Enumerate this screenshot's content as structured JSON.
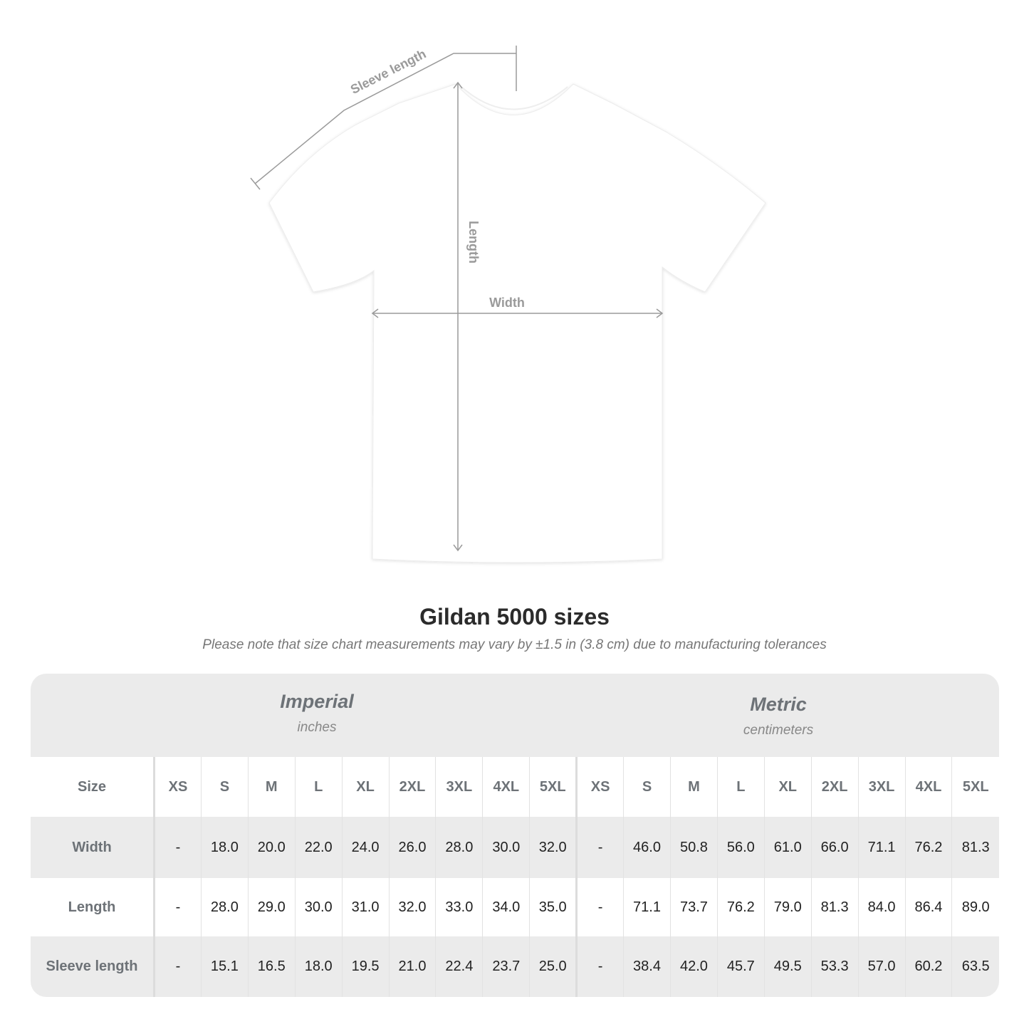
{
  "diagram": {
    "labels": {
      "sleeve": "Sleeve length",
      "length": "Length",
      "width": "Width"
    },
    "colors": {
      "shirt": "#ffffff",
      "measure_lines": "#9a9a9a"
    }
  },
  "title": "Gildan 5000 sizes",
  "subtitle": "Please note that size chart measurements may vary by ±1.5 in (3.8 cm) due to manufacturing tolerances",
  "table": {
    "imperial": {
      "name": "Imperial",
      "unit": "inches"
    },
    "metric": {
      "name": "Metric",
      "unit": "centimeters"
    },
    "size_label": "Size",
    "sizes": [
      "XS",
      "S",
      "M",
      "L",
      "XL",
      "2XL",
      "3XL",
      "4XL",
      "5XL"
    ],
    "rows": [
      {
        "label": "Width",
        "imperial": [
          "-",
          "18.0",
          "20.0",
          "22.0",
          "24.0",
          "26.0",
          "28.0",
          "30.0",
          "32.0"
        ],
        "metric": [
          "-",
          "46.0",
          "50.8",
          "56.0",
          "61.0",
          "66.0",
          "71.1",
          "76.2",
          "81.3"
        ]
      },
      {
        "label": "Length",
        "imperial": [
          "-",
          "28.0",
          "29.0",
          "30.0",
          "31.0",
          "32.0",
          "33.0",
          "34.0",
          "35.0"
        ],
        "metric": [
          "-",
          "71.1",
          "73.7",
          "76.2",
          "79.0",
          "81.3",
          "84.0",
          "86.4",
          "89.0"
        ]
      },
      {
        "label": "Sleeve length",
        "imperial": [
          "-",
          "15.1",
          "16.5",
          "18.0",
          "19.5",
          "21.0",
          "22.4",
          "23.7",
          "25.0"
        ],
        "metric": [
          "-",
          "38.4",
          "42.0",
          "45.7",
          "49.5",
          "53.3",
          "57.0",
          "60.2",
          "63.5"
        ]
      }
    ]
  }
}
